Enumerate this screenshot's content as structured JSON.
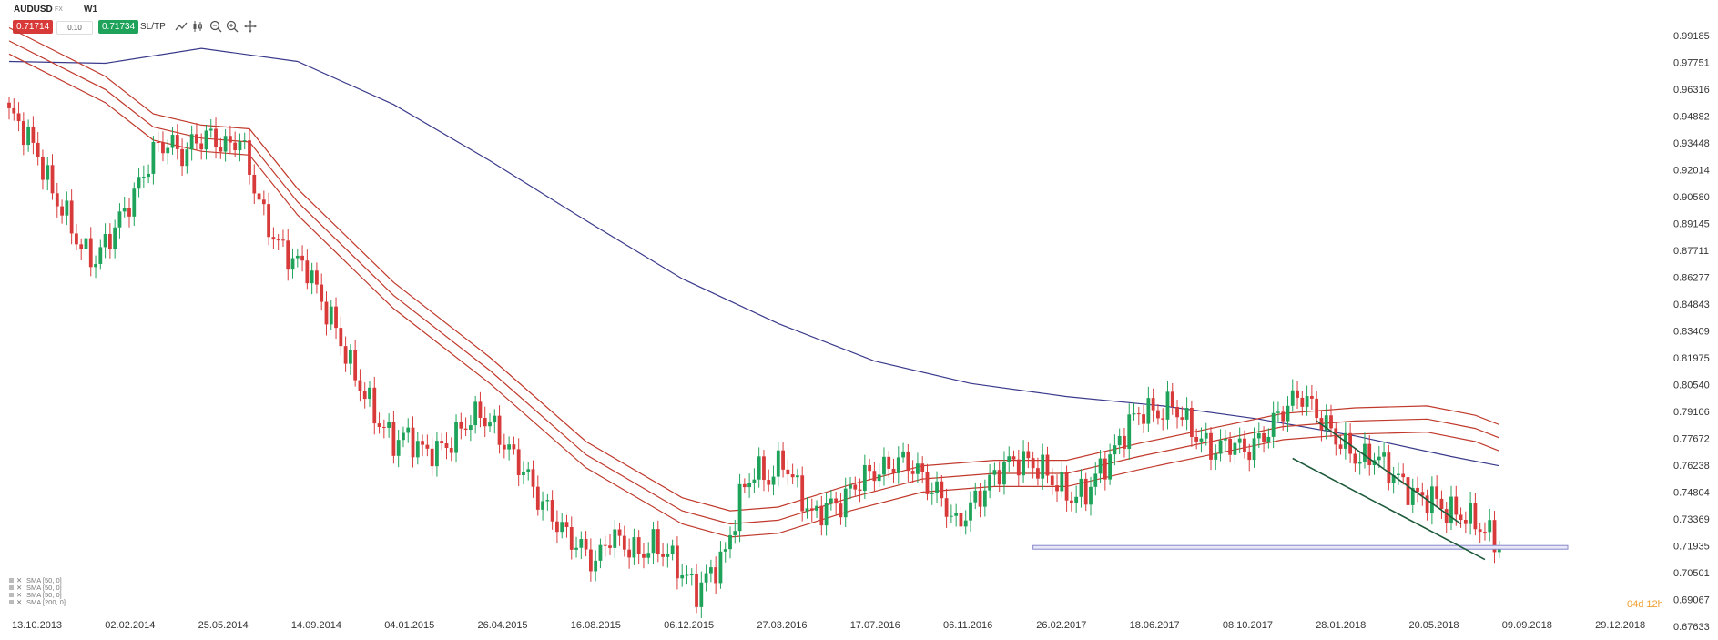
{
  "toolbar": {
    "symbol": "AUDUSD",
    "symbol_sub": "FX",
    "timeframe": "W1",
    "sell_price": "0.71714",
    "volume": "0.10",
    "buy_price": "0.71734",
    "sltp_label": "SL/TP",
    "tools": [
      "line-chart-icon",
      "candlestick-icon",
      "zoom-out-icon",
      "zoom-in-icon",
      "crosshair-move-icon"
    ]
  },
  "countdown": "04d 12h",
  "legend": [
    "SMA [50, 0]",
    "SMA [50, 0]",
    "SMA [50, 0]",
    "SMA [200, 0]"
  ],
  "colors": {
    "up": "#1fa35a",
    "down": "#d83a3a",
    "sma200": "#3a3a8c",
    "sma50": "#c0392b",
    "trendline": "#1d5a3a",
    "support": "#8888cc"
  },
  "chart_data": {
    "type": "candlestick",
    "title": "AUDUSD W1",
    "y_ticks": [
      "0.99185",
      "0.97751",
      "0.96316",
      "0.94882",
      "0.93448",
      "0.92014",
      "0.90580",
      "0.89145",
      "0.87711",
      "0.86277",
      "0.84843",
      "0.83409",
      "0.81975",
      "0.80540",
      "0.79106",
      "0.77672",
      "0.76238",
      "0.74804",
      "0.73369",
      "0.71935",
      "0.70501",
      "0.69067",
      "0.67633"
    ],
    "x_ticks": [
      "13.10.2013",
      "02.02.2014",
      "25.05.2014",
      "14.09.2014",
      "04.01.2015",
      "26.04.2015",
      "16.08.2015",
      "06.12.2015",
      "27.03.2016",
      "17.07.2016",
      "06.11.2016",
      "26.02.2017",
      "18.06.2017",
      "08.10.2017",
      "28.01.2018",
      "20.05.2018",
      "09.09.2018",
      "29.12.2018"
    ],
    "ylim": [
      0.6735,
      0.9935
    ],
    "close_path": [
      [
        0,
        0.95
      ],
      [
        3,
        0.942
      ],
      [
        6,
        0.928
      ],
      [
        9,
        0.908
      ],
      [
        12,
        0.895
      ],
      [
        15,
        0.878
      ],
      [
        18,
        0.872
      ],
      [
        21,
        0.885
      ],
      [
        24,
        0.898
      ],
      [
        27,
        0.912
      ],
      [
        30,
        0.93
      ],
      [
        33,
        0.935
      ],
      [
        36,
        0.928
      ],
      [
        39,
        0.936
      ],
      [
        42,
        0.938
      ],
      [
        45,
        0.932
      ],
      [
        48,
        0.937
      ],
      [
        50,
        0.92
      ],
      [
        53,
        0.895
      ],
      [
        56,
        0.88
      ],
      [
        59,
        0.872
      ],
      [
        62,
        0.868
      ],
      [
        65,
        0.85
      ],
      [
        68,
        0.835
      ],
      [
        71,
        0.815
      ],
      [
        74,
        0.8
      ],
      [
        77,
        0.785
      ],
      [
        80,
        0.775
      ],
      [
        83,
        0.778
      ],
      [
        86,
        0.77
      ],
      [
        89,
        0.77
      ],
      [
        92,
        0.775
      ],
      [
        95,
        0.785
      ],
      [
        98,
        0.79
      ],
      [
        101,
        0.782
      ],
      [
        104,
        0.77
      ],
      [
        107,
        0.76
      ],
      [
        110,
        0.745
      ],
      [
        113,
        0.735
      ],
      [
        116,
        0.725
      ],
      [
        119,
        0.718
      ],
      [
        122,
        0.71
      ],
      [
        125,
        0.725
      ],
      [
        128,
        0.72
      ],
      [
        131,
        0.715
      ],
      [
        134,
        0.72
      ],
      [
        137,
        0.715
      ],
      [
        140,
        0.705
      ],
      [
        143,
        0.695
      ],
      [
        146,
        0.705
      ],
      [
        149,
        0.715
      ],
      [
        152,
        0.745
      ],
      [
        155,
        0.76
      ],
      [
        158,
        0.755
      ],
      [
        161,
        0.765
      ],
      [
        164,
        0.75
      ],
      [
        167,
        0.735
      ],
      [
        170,
        0.74
      ],
      [
        173,
        0.742
      ],
      [
        176,
        0.752
      ],
      [
        179,
        0.758
      ],
      [
        182,
        0.76
      ],
      [
        185,
        0.765
      ],
      [
        188,
        0.762
      ],
      [
        191,
        0.752
      ],
      [
        194,
        0.745
      ],
      [
        197,
        0.73
      ],
      [
        200,
        0.74
      ],
      [
        203,
        0.75
      ],
      [
        206,
        0.76
      ],
      [
        209,
        0.765
      ],
      [
        212,
        0.764
      ],
      [
        215,
        0.76
      ],
      [
        218,
        0.752
      ],
      [
        221,
        0.745
      ],
      [
        224,
        0.748
      ],
      [
        227,
        0.76
      ],
      [
        230,
        0.77
      ],
      [
        233,
        0.785
      ],
      [
        236,
        0.792
      ],
      [
        239,
        0.79
      ],
      [
        242,
        0.795
      ],
      [
        245,
        0.785
      ],
      [
        248,
        0.775
      ],
      [
        251,
        0.77
      ],
      [
        254,
        0.775
      ],
      [
        257,
        0.77
      ],
      [
        260,
        0.775
      ],
      [
        263,
        0.785
      ],
      [
        266,
        0.795
      ],
      [
        269,
        0.8
      ],
      [
        272,
        0.79
      ],
      [
        275,
        0.78
      ],
      [
        278,
        0.772
      ],
      [
        281,
        0.765
      ],
      [
        284,
        0.768
      ],
      [
        287,
        0.76
      ],
      [
        290,
        0.752
      ],
      [
        293,
        0.745
      ],
      [
        296,
        0.745
      ],
      [
        299,
        0.738
      ],
      [
        302,
        0.736
      ],
      [
        305,
        0.732
      ],
      [
        308,
        0.725
      ],
      [
        310,
        0.72
      ]
    ],
    "series": [
      {
        "name": "SMA [200, 0]",
        "color": "#3a3a8c",
        "values": [
          [
            0,
            0.978
          ],
          [
            20,
            0.977
          ],
          [
            40,
            0.985
          ],
          [
            60,
            0.978
          ],
          [
            80,
            0.955
          ],
          [
            100,
            0.925
          ],
          [
            120,
            0.893
          ],
          [
            140,
            0.862
          ],
          [
            160,
            0.838
          ],
          [
            180,
            0.818
          ],
          [
            200,
            0.806
          ],
          [
            220,
            0.799
          ],
          [
            240,
            0.794
          ],
          [
            260,
            0.787
          ],
          [
            280,
            0.778
          ],
          [
            300,
            0.767
          ],
          [
            310,
            0.762
          ]
        ]
      },
      {
        "name": "SMA [50, 0]",
        "color": "#c0392b",
        "values": [
          [
            0,
            0.996
          ],
          [
            20,
            0.97
          ],
          [
            30,
            0.95
          ],
          [
            40,
            0.944
          ],
          [
            50,
            0.942
          ],
          [
            60,
            0.91
          ],
          [
            80,
            0.86
          ],
          [
            100,
            0.82
          ],
          [
            120,
            0.775
          ],
          [
            140,
            0.745
          ],
          [
            150,
            0.738
          ],
          [
            160,
            0.74
          ],
          [
            175,
            0.752
          ],
          [
            190,
            0.762
          ],
          [
            205,
            0.765
          ],
          [
            220,
            0.765
          ],
          [
            235,
            0.774
          ],
          [
            250,
            0.782
          ],
          [
            265,
            0.79
          ],
          [
            280,
            0.793
          ],
          [
            295,
            0.794
          ],
          [
            305,
            0.789
          ],
          [
            310,
            0.784
          ]
        ]
      },
      {
        "name": "SMA [50, 0]",
        "color": "#c0392b",
        "values": [
          [
            0,
            0.989
          ],
          [
            20,
            0.963
          ],
          [
            30,
            0.943
          ],
          [
            40,
            0.937
          ],
          [
            50,
            0.935
          ],
          [
            60,
            0.903
          ],
          [
            80,
            0.853
          ],
          [
            100,
            0.813
          ],
          [
            120,
            0.768
          ],
          [
            140,
            0.738
          ],
          [
            150,
            0.731
          ],
          [
            160,
            0.733
          ],
          [
            175,
            0.745
          ],
          [
            190,
            0.755
          ],
          [
            205,
            0.758
          ],
          [
            220,
            0.758
          ],
          [
            235,
            0.767
          ],
          [
            250,
            0.775
          ],
          [
            265,
            0.783
          ],
          [
            280,
            0.786
          ],
          [
            295,
            0.787
          ],
          [
            305,
            0.782
          ],
          [
            310,
            0.777
          ]
        ]
      },
      {
        "name": "SMA [50, 0]",
        "color": "#c0392b",
        "values": [
          [
            0,
            0.982
          ],
          [
            20,
            0.956
          ],
          [
            30,
            0.936
          ],
          [
            40,
            0.93
          ],
          [
            50,
            0.928
          ],
          [
            60,
            0.896
          ],
          [
            80,
            0.846
          ],
          [
            100,
            0.806
          ],
          [
            120,
            0.761
          ],
          [
            140,
            0.731
          ],
          [
            150,
            0.724
          ],
          [
            160,
            0.726
          ],
          [
            175,
            0.738
          ],
          [
            190,
            0.748
          ],
          [
            205,
            0.751
          ],
          [
            220,
            0.751
          ],
          [
            235,
            0.76
          ],
          [
            250,
            0.768
          ],
          [
            265,
            0.776
          ],
          [
            280,
            0.779
          ],
          [
            295,
            0.78
          ],
          [
            305,
            0.775
          ],
          [
            310,
            0.77
          ]
        ]
      }
    ],
    "support_level": 0.7185,
    "trendlines": [
      [
        [
          272,
          0.786
        ],
        [
          302,
          0.731
        ]
      ],
      [
        [
          267,
          0.766
        ],
        [
          307,
          0.712
        ]
      ]
    ]
  }
}
